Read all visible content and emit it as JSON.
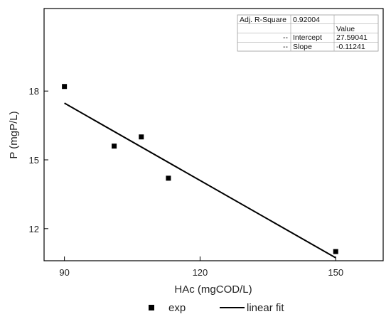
{
  "chart_data": {
    "type": "scatter",
    "xlabel": "HAc (mgCOD/L)",
    "ylabel": "P (mgP/L)",
    "xlim": [
      85.5,
      160.5
    ],
    "ylim": [
      10.6,
      21.6
    ],
    "x_ticks": [
      90,
      120,
      150
    ],
    "y_ticks": [
      12,
      15,
      18
    ],
    "series": [
      {
        "name": "exp",
        "marker": "square",
        "x": [
          90,
          101,
          107,
          113,
          150
        ],
        "y": [
          18.2,
          15.6,
          16.0,
          14.2,
          11.0
        ]
      }
    ],
    "fit": {
      "name": "linear fit",
      "intercept": 27.59041,
      "slope": -0.11241,
      "x_range": [
        90,
        150
      ]
    },
    "legend": {
      "placement": "bottom-center",
      "entries": [
        "exp",
        "linear fit"
      ]
    },
    "stats_table": {
      "placement": "top-right",
      "adj_r_label": "Adj. R-Square",
      "adj_r_value": "0.92004",
      "value_header": "Value",
      "rows": [
        {
          "dash": "--",
          "name": "Intercept",
          "value": "27.59041"
        },
        {
          "dash": "--",
          "name": "Slope",
          "value": "-0.11241"
        }
      ]
    },
    "colors": {
      "line": "#000000",
      "marker": "#000000",
      "axis": "#000000",
      "table_border": "#9a9a9a"
    }
  }
}
